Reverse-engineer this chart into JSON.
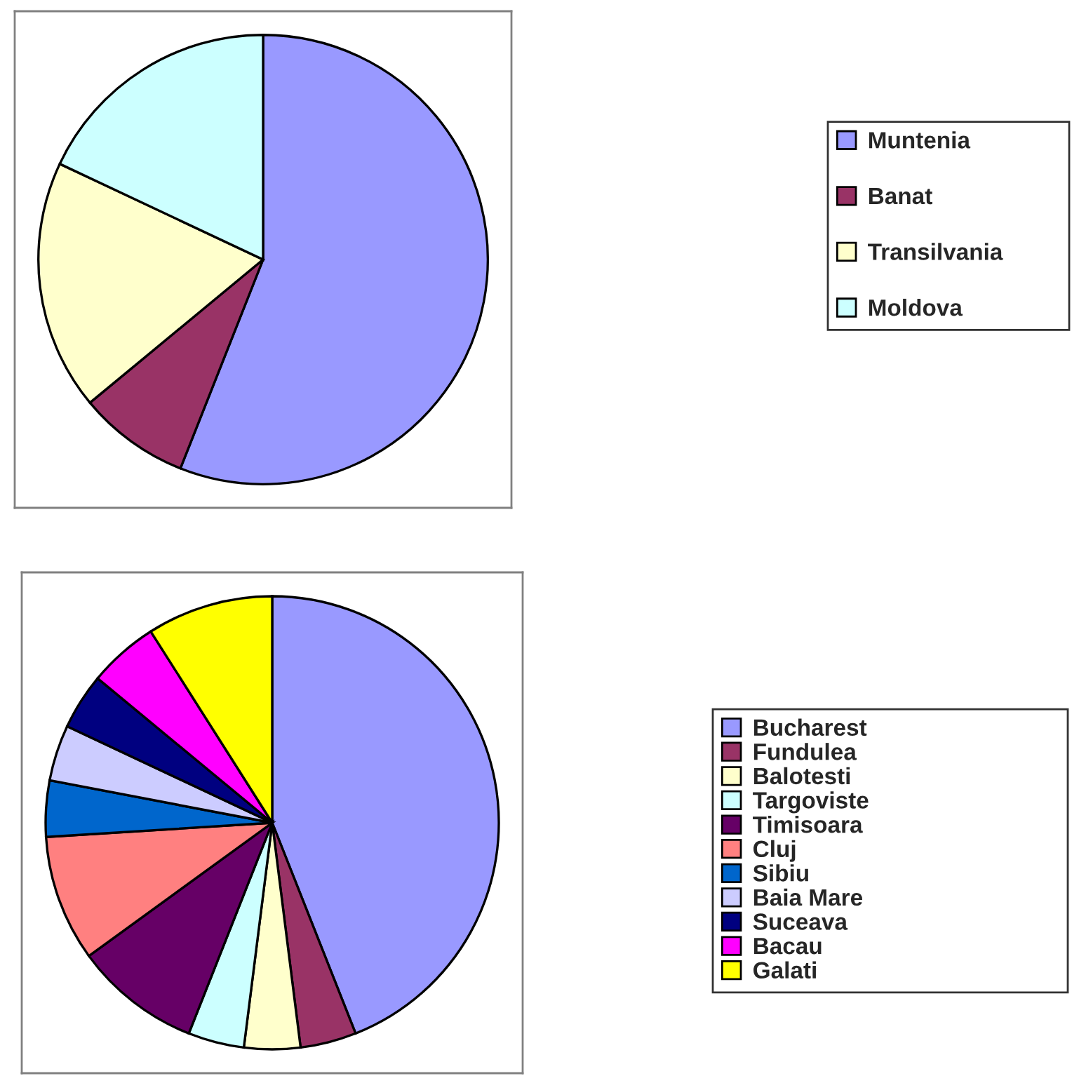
{
  "chart_data": [
    {
      "type": "pie",
      "categories": [
        "Muntenia",
        "Banat",
        "Transilvania",
        "Moldova"
      ],
      "values": [
        56,
        8,
        18,
        18
      ],
      "colors": [
        "#9999ff",
        "#993366",
        "#ffffcc",
        "#ccffff"
      ],
      "legend": "right"
    },
    {
      "type": "pie",
      "categories": [
        "Bucharest",
        "Fundulea",
        "Balotesti",
        "Targoviste",
        "Timisoara",
        "Cluj",
        "Sibiu",
        "Baia Mare",
        "Suceava",
        "Bacau",
        "Galati"
      ],
      "values": [
        44,
        4,
        4,
        4,
        9,
        9,
        4,
        4,
        4,
        5,
        9
      ],
      "colors": [
        "#9999ff",
        "#993366",
        "#ffffcc",
        "#ccffff",
        "#660066",
        "#ff8080",
        "#0066cc",
        "#ccccff",
        "#000080",
        "#ff00ff",
        "#ffff00"
      ],
      "legend": "right"
    }
  ]
}
